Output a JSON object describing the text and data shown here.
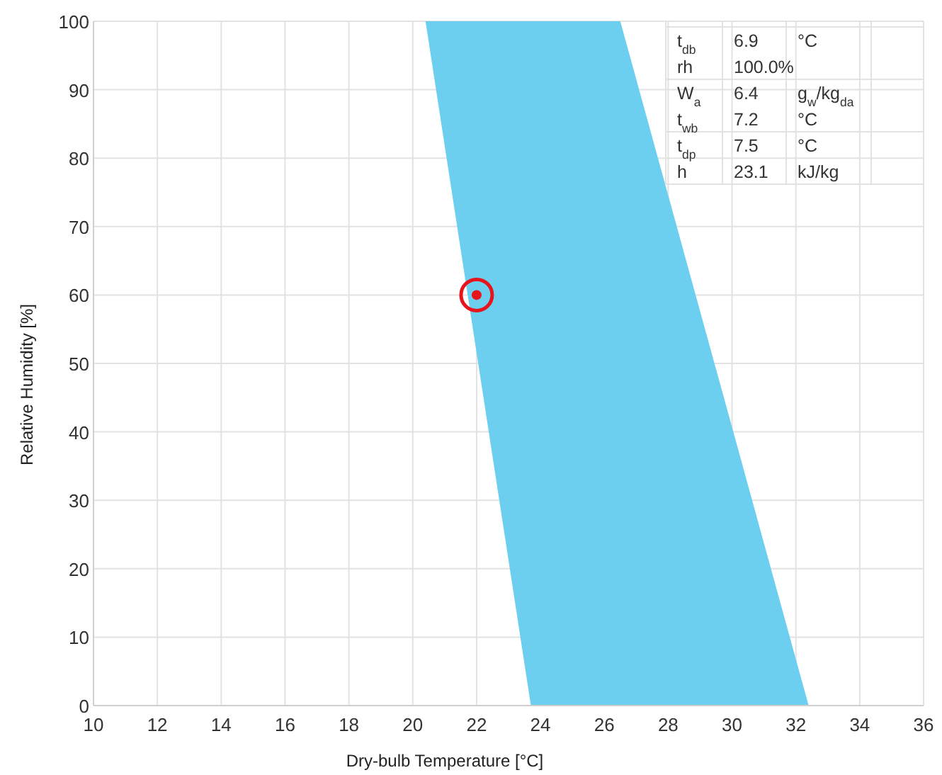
{
  "chart_data": {
    "type": "scatter",
    "xlabel": "Dry-bulb Temperature [°C]",
    "ylabel": "Relative Humidity [%]",
    "xlim": [
      10,
      36
    ],
    "xticks": [
      10,
      12,
      14,
      16,
      18,
      20,
      22,
      24,
      26,
      28,
      30,
      32,
      34,
      36
    ],
    "ylim": [
      0,
      100
    ],
    "yticks": [
      0,
      10,
      20,
      30,
      40,
      50,
      60,
      70,
      80,
      90,
      100
    ],
    "grid": true,
    "series": [
      {
        "type": "area",
        "color": "#6dcff0",
        "x": [
          20.4,
          26.5,
          32.4,
          23.7
        ],
        "values": [
          100,
          100,
          0,
          0
        ]
      },
      {
        "color": "#e8141c",
        "marker": "circle",
        "x": [
          22
        ],
        "values": [
          60
        ]
      }
    ],
    "annotations": [
      "t$_{db}$\t6.9\t°C",
      "rh\t100.0%",
      "W$_{a}$\t6.4\tg$_{w}$/kg$_{da}$",
      "t$_{wb}$\t7.2\t°C",
      "t$_{dp}$\t7.5\t°C",
      "h\t23.1\tkJ/kg"
    ]
  }
}
